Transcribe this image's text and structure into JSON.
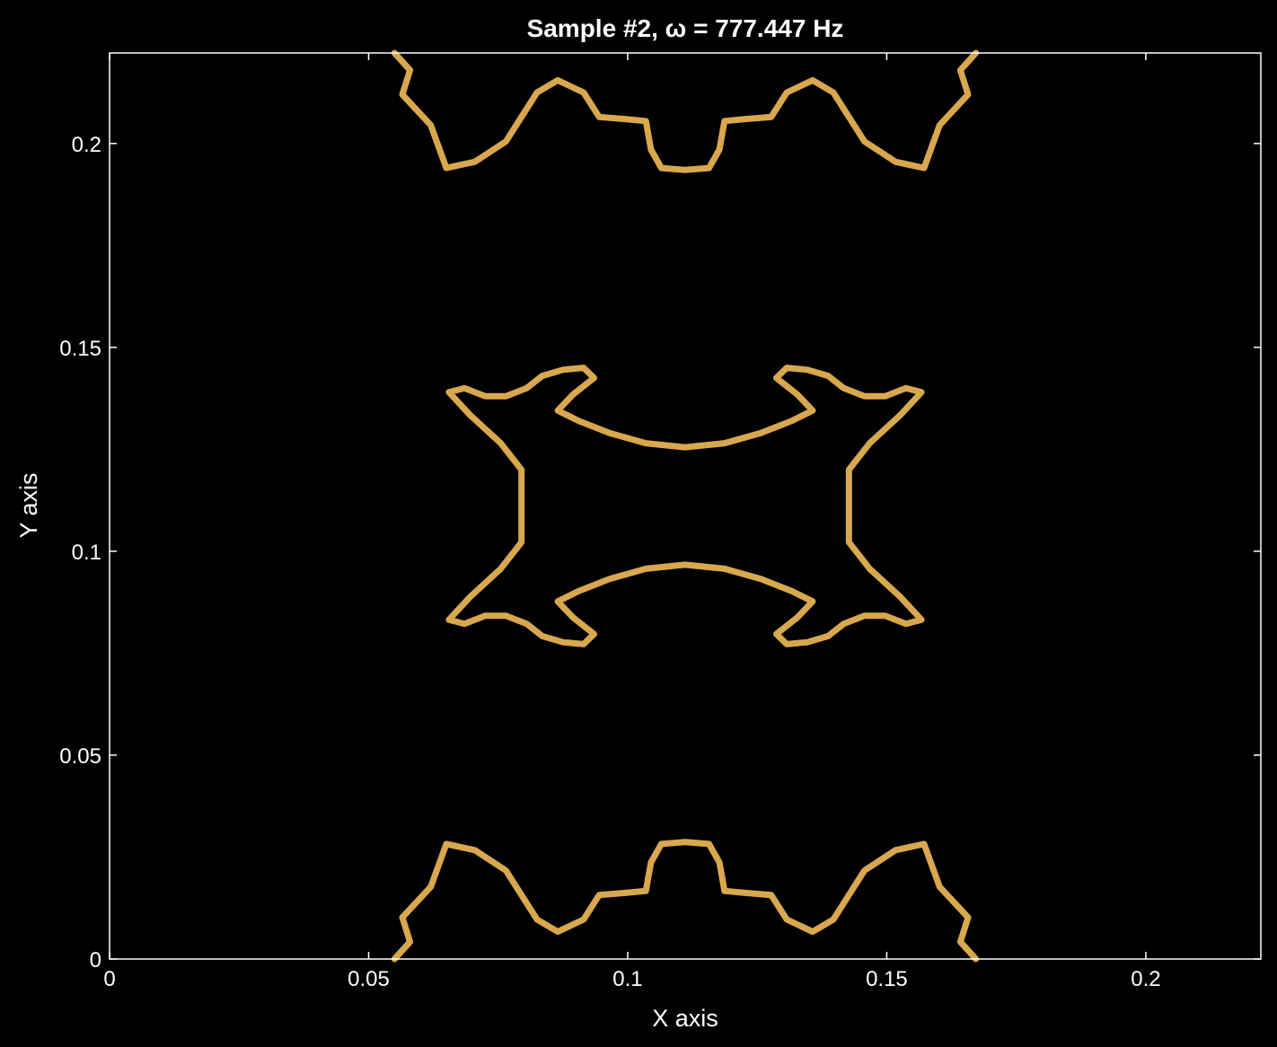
{
  "colors": {
    "background": "#000000",
    "axes": "#ffffff",
    "contour": "#d9a84e"
  },
  "chart_data": {
    "type": "contour",
    "title": "Sample #2,  ω = 777.447  Hz",
    "xlabel": "X axis",
    "ylabel": "Y axis",
    "xlim": [
      0,
      0.2222
    ],
    "ylim": [
      0,
      0.2222
    ],
    "xticks": [
      0,
      0.05,
      0.1,
      0.15,
      0.2
    ],
    "yticks": [
      0,
      0.05,
      0.1,
      0.15,
      0.2
    ],
    "xtick_labels": [
      "0",
      "0.05",
      "0.1",
      "0.15",
      "0.2"
    ],
    "ytick_labels": [
      "0",
      "0.05",
      "0.1",
      "0.15",
      "0.2"
    ],
    "grid": false,
    "symmetry": "mirror about x = 0.1111 and y = 0.1111",
    "contour_level": 0,
    "curves": [
      {
        "name": "center-top",
        "closed": true,
        "points": [
          [
            0.0655,
            0.139
          ],
          [
            0.0685,
            0.14
          ],
          [
            0.0725,
            0.138
          ],
          [
            0.0765,
            0.138
          ],
          [
            0.0805,
            0.14
          ],
          [
            0.0835,
            0.143
          ],
          [
            0.0875,
            0.1445
          ],
          [
            0.0915,
            0.145
          ],
          [
            0.0935,
            0.1425
          ],
          [
            0.0895,
            0.1385
          ],
          [
            0.0865,
            0.1345
          ],
          [
            0.0905,
            0.132
          ],
          [
            0.0965,
            0.129
          ],
          [
            0.1035,
            0.1265
          ],
          [
            0.1111,
            0.1255
          ],
          [
            0.1187,
            0.1265
          ],
          [
            0.1257,
            0.129
          ],
          [
            0.1317,
            0.132
          ],
          [
            0.1357,
            0.1345
          ],
          [
            0.1327,
            0.1385
          ],
          [
            0.1287,
            0.1425
          ],
          [
            0.1307,
            0.145
          ],
          [
            0.1347,
            0.1445
          ],
          [
            0.1387,
            0.143
          ],
          [
            0.1417,
            0.14
          ],
          [
            0.1457,
            0.138
          ],
          [
            0.1497,
            0.138
          ],
          [
            0.1537,
            0.14
          ],
          [
            0.1567,
            0.139
          ],
          [
            0.1527,
            0.1335
          ],
          [
            0.1467,
            0.1265
          ],
          [
            0.1427,
            0.12
          ],
          [
            0.1427,
            0.1111
          ],
          [
            0.1427,
            0.1022
          ],
          [
            0.1467,
            0.0957
          ],
          [
            0.1527,
            0.0887
          ],
          [
            0.1567,
            0.0832
          ],
          [
            0.1537,
            0.0822
          ],
          [
            0.1497,
            0.0842
          ],
          [
            0.1457,
            0.0842
          ],
          [
            0.1417,
            0.0822
          ],
          [
            0.1387,
            0.0792
          ],
          [
            0.1347,
            0.0777
          ],
          [
            0.1307,
            0.0772
          ],
          [
            0.1287,
            0.0797
          ],
          [
            0.1327,
            0.0837
          ],
          [
            0.1357,
            0.0877
          ],
          [
            0.1317,
            0.0902
          ],
          [
            0.1257,
            0.0932
          ],
          [
            0.1187,
            0.0957
          ],
          [
            0.1111,
            0.0967
          ],
          [
            0.1035,
            0.0957
          ],
          [
            0.0965,
            0.0932
          ],
          [
            0.0905,
            0.0902
          ],
          [
            0.0865,
            0.0877
          ],
          [
            0.0895,
            0.0837
          ],
          [
            0.0935,
            0.0797
          ],
          [
            0.0915,
            0.0772
          ],
          [
            0.0875,
            0.0777
          ],
          [
            0.0835,
            0.0792
          ],
          [
            0.0805,
            0.0822
          ],
          [
            0.0765,
            0.0842
          ],
          [
            0.0725,
            0.0842
          ],
          [
            0.0685,
            0.0822
          ],
          [
            0.0655,
            0.0832
          ],
          [
            0.0695,
            0.0887
          ],
          [
            0.0755,
            0.0957
          ],
          [
            0.0795,
            0.1022
          ],
          [
            0.0795,
            0.1111
          ],
          [
            0.0795,
            0.12
          ],
          [
            0.0755,
            0.1265
          ],
          [
            0.0695,
            0.1335
          ]
        ]
      },
      {
        "name": "center-top-bar",
        "closed": false,
        "points": [
          [
            0.055,
            0.2222
          ],
          [
            0.058,
            0.218
          ],
          [
            0.0565,
            0.212
          ],
          [
            0.062,
            0.2045
          ],
          [
            0.065,
            0.194
          ],
          [
            0.0705,
            0.1955
          ],
          [
            0.0765,
            0.2005
          ],
          [
            0.0795,
            0.2065
          ],
          [
            0.0825,
            0.2125
          ],
          [
            0.0865,
            0.2155
          ],
          [
            0.0915,
            0.2125
          ],
          [
            0.0945,
            0.2065
          ],
          [
            0.0995,
            0.206
          ],
          [
            0.1035,
            0.2055
          ],
          [
            0.1045,
            0.1985
          ],
          [
            0.1065,
            0.194
          ],
          [
            0.1111,
            0.1935
          ],
          [
            0.1157,
            0.194
          ],
          [
            0.1177,
            0.1985
          ],
          [
            0.1187,
            0.2055
          ],
          [
            0.1227,
            0.206
          ],
          [
            0.1277,
            0.2065
          ],
          [
            0.1307,
            0.2125
          ],
          [
            0.1357,
            0.2155
          ],
          [
            0.1397,
            0.2125
          ],
          [
            0.1427,
            0.2065
          ],
          [
            0.1457,
            0.2005
          ],
          [
            0.1517,
            0.1955
          ],
          [
            0.1572,
            0.194
          ],
          [
            0.1602,
            0.2045
          ],
          [
            0.1657,
            0.212
          ],
          [
            0.1642,
            0.218
          ],
          [
            0.1672,
            0.2222
          ]
        ]
      },
      {
        "name": "center-bottom-bar",
        "closed": false,
        "points": [
          [
            0.055,
            0
          ],
          [
            0.058,
            0.0042
          ],
          [
            0.0565,
            0.0102
          ],
          [
            0.062,
            0.0177
          ],
          [
            0.065,
            0.0282
          ],
          [
            0.0705,
            0.0267
          ],
          [
            0.0765,
            0.0217
          ],
          [
            0.0795,
            0.0157
          ],
          [
            0.0825,
            0.0097
          ],
          [
            0.0865,
            0.0067
          ],
          [
            0.0915,
            0.0097
          ],
          [
            0.0945,
            0.0157
          ],
          [
            0.0995,
            0.0162
          ],
          [
            0.1035,
            0.0167
          ],
          [
            0.1045,
            0.0237
          ],
          [
            0.1065,
            0.0282
          ],
          [
            0.1111,
            0.0287
          ],
          [
            0.1157,
            0.0282
          ],
          [
            0.1177,
            0.0237
          ],
          [
            0.1187,
            0.0167
          ],
          [
            0.1227,
            0.0162
          ],
          [
            0.1277,
            0.0157
          ],
          [
            0.1307,
            0.0097
          ],
          [
            0.1357,
            0.0067
          ],
          [
            0.1397,
            0.0097
          ],
          [
            0.1427,
            0.0157
          ],
          [
            0.1457,
            0.0217
          ],
          [
            0.1517,
            0.0267
          ],
          [
            0.1572,
            0.0282
          ],
          [
            0.1602,
            0.0177
          ],
          [
            0.1657,
            0.0102
          ],
          [
            0.1642,
            0.0042
          ],
          [
            0.1672,
            0
          ]
        ]
      }
    ]
  }
}
